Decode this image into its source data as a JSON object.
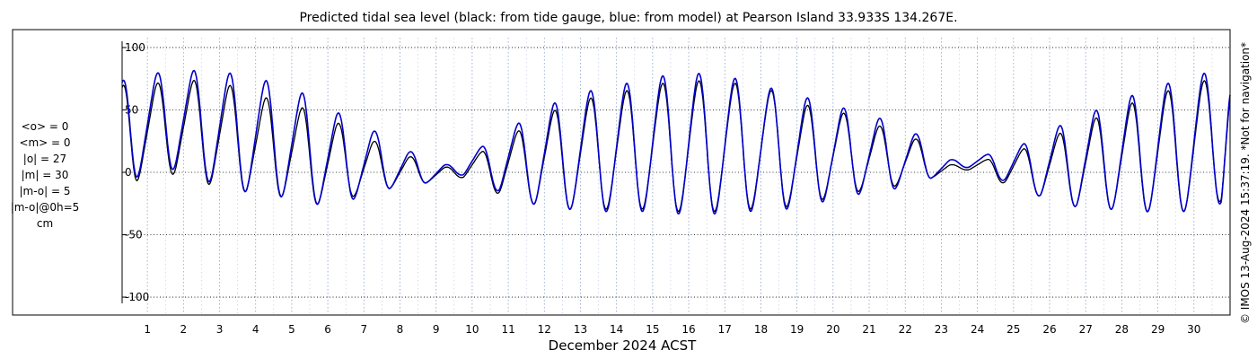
{
  "chart_data": {
    "type": "line",
    "title": "Predicted tidal sea level (black: from tide gauge, blue: from model) at Pearson Island 33.933S 134.267E.",
    "xlabel": "December 2024 ACST",
    "ylabel": "",
    "xlim": [
      0.3,
      31.0
    ],
    "ylim": [
      -105,
      105
    ],
    "x_ticks": [
      "1",
      "2",
      "3",
      "4",
      "5",
      "6",
      "7",
      "8",
      "9",
      "10",
      "11",
      "12",
      "13",
      "14",
      "15",
      "16",
      "17",
      "18",
      "19",
      "20",
      "21",
      "22",
      "23",
      "24",
      "25",
      "26",
      "27",
      "28",
      "29",
      "30"
    ],
    "y_ticks": [
      {
        "value": 100,
        "label": "100"
      },
      {
        "value": 50,
        "label": "50"
      },
      {
        "value": 0,
        "label": "0"
      },
      {
        "value": -50,
        "label": "-50"
      },
      {
        "value": -100,
        "label": "-100"
      }
    ],
    "grid": true,
    "series": [
      {
        "name": "from tide gauge",
        "color": "#000000",
        "x": [
          0.3,
          0.75,
          1.25,
          1.75,
          2.25,
          2.75,
          3.25,
          3.75,
          4.25,
          4.75,
          5.25,
          5.75,
          6.25,
          6.75,
          7.25,
          7.75,
          8.25,
          8.75,
          9.25,
          9.75,
          10.25,
          10.75,
          11.25,
          11.75,
          12.25,
          12.75,
          13.25,
          13.75,
          14.25,
          14.75,
          15.25,
          15.75,
          16.25,
          16.75,
          17.25,
          17.75,
          18.25,
          18.75,
          19.25,
          19.75,
          20.25,
          20.75,
          21.25,
          21.75,
          22.25,
          22.75,
          23.25,
          23.75,
          24.25,
          24.75,
          25.25,
          25.75,
          26.25,
          26.75,
          27.25,
          27.75,
          28.25,
          28.75,
          29.25,
          29.75,
          30.25,
          30.75,
          31.0
        ],
        "values": [
          68,
          -5,
          70,
          0,
          72,
          -8,
          68,
          -14,
          58,
          -18,
          50,
          -24,
          38,
          -18,
          24,
          -12,
          12,
          -8,
          4,
          -4,
          16,
          -16,
          32,
          -24,
          48,
          -28,
          58,
          -28,
          64,
          -28,
          70,
          -30,
          72,
          -30,
          70,
          -28,
          64,
          -26,
          52,
          -20,
          46,
          -14,
          36,
          -10,
          26,
          -4,
          6,
          2,
          10,
          -8,
          18,
          -18,
          30,
          -26,
          42,
          -28,
          54,
          -30,
          64,
          -30,
          72,
          -22,
          58
        ]
      },
      {
        "name": "from model",
        "color": "#0000cc",
        "x": [
          0.3,
          0.75,
          1.25,
          1.75,
          2.25,
          2.75,
          3.25,
          3.75,
          4.25,
          4.75,
          5.25,
          5.75,
          6.25,
          6.75,
          7.25,
          7.75,
          8.25,
          8.75,
          9.25,
          9.75,
          10.25,
          10.75,
          11.25,
          11.75,
          12.25,
          12.75,
          13.25,
          13.75,
          14.25,
          14.75,
          15.25,
          15.75,
          16.25,
          16.75,
          17.25,
          17.75,
          18.25,
          18.75,
          19.25,
          19.75,
          20.25,
          20.75,
          21.25,
          21.75,
          22.25,
          22.75,
          23.25,
          23.75,
          24.25,
          24.75,
          25.25,
          25.75,
          26.25,
          26.75,
          27.25,
          27.75,
          28.25,
          28.75,
          29.25,
          29.75,
          30.25,
          30.75,
          31.0
        ],
        "values": [
          72,
          -2,
          78,
          4,
          80,
          -6,
          78,
          -14,
          72,
          -18,
          62,
          -24,
          46,
          -20,
          32,
          -12,
          16,
          -8,
          6,
          -2,
          20,
          -14,
          38,
          -24,
          54,
          -28,
          64,
          -30,
          70,
          -30,
          76,
          -32,
          78,
          -32,
          74,
          -30,
          66,
          -28,
          58,
          -22,
          50,
          -16,
          42,
          -12,
          30,
          -4,
          10,
          4,
          14,
          -6,
          22,
          -18,
          36,
          -26,
          48,
          -28,
          60,
          -30,
          70,
          -30,
          78,
          -24,
          62
        ]
      }
    ],
    "stats": {
      "line1": "<o> = 0",
      "line2": "<m> = 0",
      "line3": "|o| = 27",
      "line4": "|m| = 30",
      "line5": "|m-o| = 5",
      "line6": "|m-o|@0h=5",
      "unit": "cm"
    },
    "credit": "© IMOS 13-Aug-2024 15:37:19. *Not for navigation*"
  }
}
